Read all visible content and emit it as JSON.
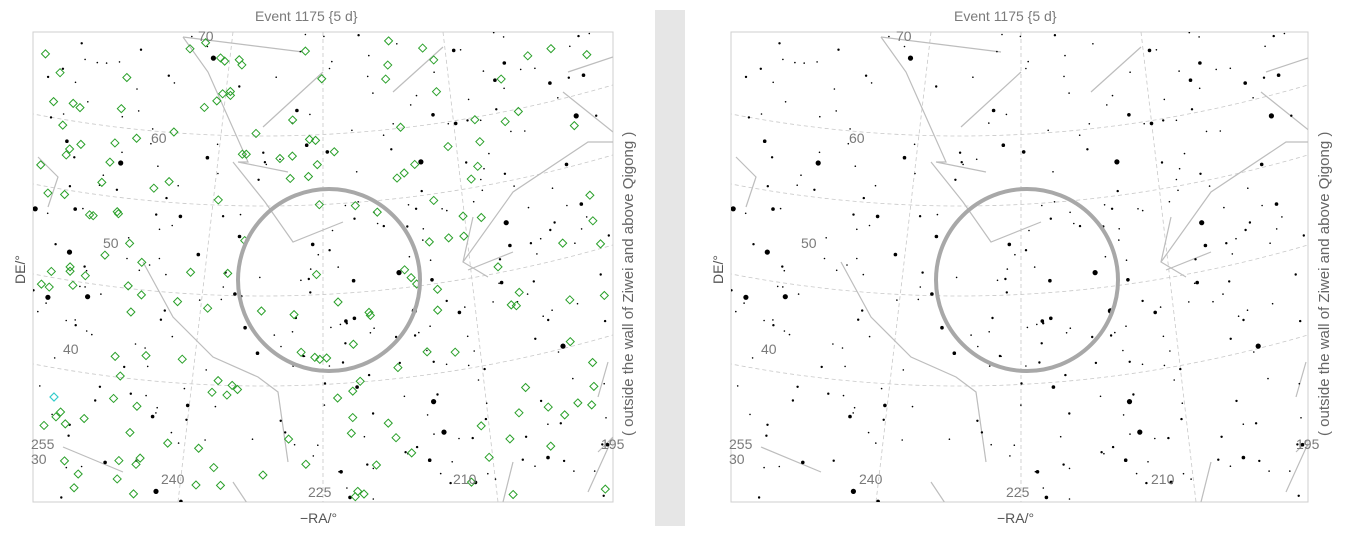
{
  "panels": [
    {
      "title": "Event 1175 {5   d}",
      "xlabel": "−RA/°",
      "ylabel": "DE/°",
      "show_catalog_markers": true
    },
    {
      "title": "Event 1175 {5   d}",
      "xlabel": "−RA/°",
      "ylabel": "DE/°",
      "show_catalog_markers": false
    }
  ],
  "grid_labels": {
    "dec": [
      "70",
      "60",
      "50",
      "40",
      "30"
    ],
    "ra": [
      "240",
      "225",
      "210"
    ],
    "ra_edge_left": "255",
    "ra_edge_right": "195"
  },
  "side_label": "( outside the wall of Ziwei and above Qigong )",
  "colors": {
    "stars": "#000000",
    "constellation_lines": "#bdbdbd",
    "grid": "#c8c8c8",
    "circle": "#a8a8a8",
    "catalog_markers": "#2aa02a",
    "highlight_marker": "#33cccc",
    "divider": "#e6e6e6"
  }
}
